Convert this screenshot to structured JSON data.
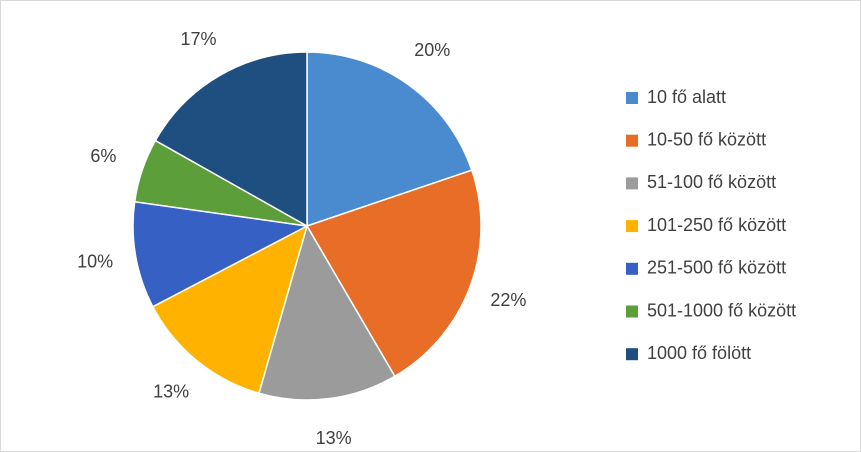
{
  "chart_data": {
    "type": "pie",
    "categories": [
      "10 fő alatt",
      "10-50 fő között",
      "51-100 fő között",
      "101-250 fő között",
      "251-500 fő között",
      "501-1000 fő között",
      "1000 fő fölött"
    ],
    "values": [
      20,
      22,
      13,
      13,
      10,
      6,
      17
    ],
    "value_labels": [
      "20%",
      "22%",
      "13%",
      "13%",
      "10%",
      "6%",
      "17%"
    ],
    "colors": [
      "#4a8bd0",
      "#e86d26",
      "#9b9b9b",
      "#ffb300",
      "#3660c4",
      "#5b9e3a",
      "#1f4e80"
    ],
    "legend": "right"
  }
}
